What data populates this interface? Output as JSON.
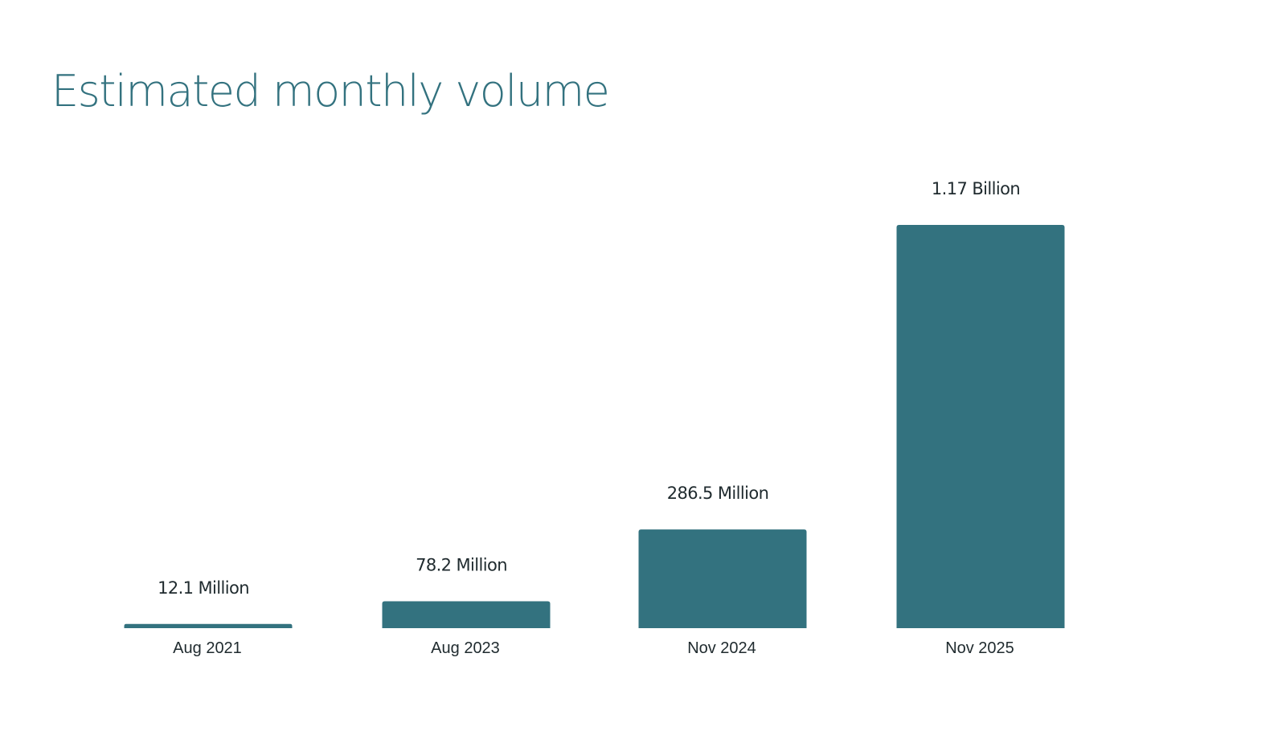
{
  "chart_data": {
    "type": "bar",
    "title": "Estimated monthly volume",
    "xlabel": "",
    "ylabel": "",
    "categories": [
      "Aug 2021",
      "Aug 2023",
      "Nov 2024",
      "Nov 2025"
    ],
    "values": [
      12.1,
      78.2,
      286.5,
      1170
    ],
    "value_unit": "Million",
    "data_labels": [
      "12.1 Million",
      "78.2 Million",
      "286.5 Million",
      "1.17 Billion"
    ],
    "ylim": [
      0,
      1170
    ],
    "grid": false,
    "legend": "none",
    "bar_color": "#33727f"
  }
}
